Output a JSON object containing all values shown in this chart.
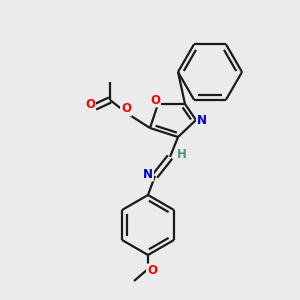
{
  "bg_color": "#ebebeb",
  "bond_color": "#1a1a1a",
  "atom_colors": {
    "O": "#ff0000",
    "N": "#0000cd",
    "C": "#1a1a1a",
    "H": "#4a9a7a"
  },
  "figsize": [
    3.0,
    3.0
  ],
  "dpi": 100,
  "lw": 1.6
}
